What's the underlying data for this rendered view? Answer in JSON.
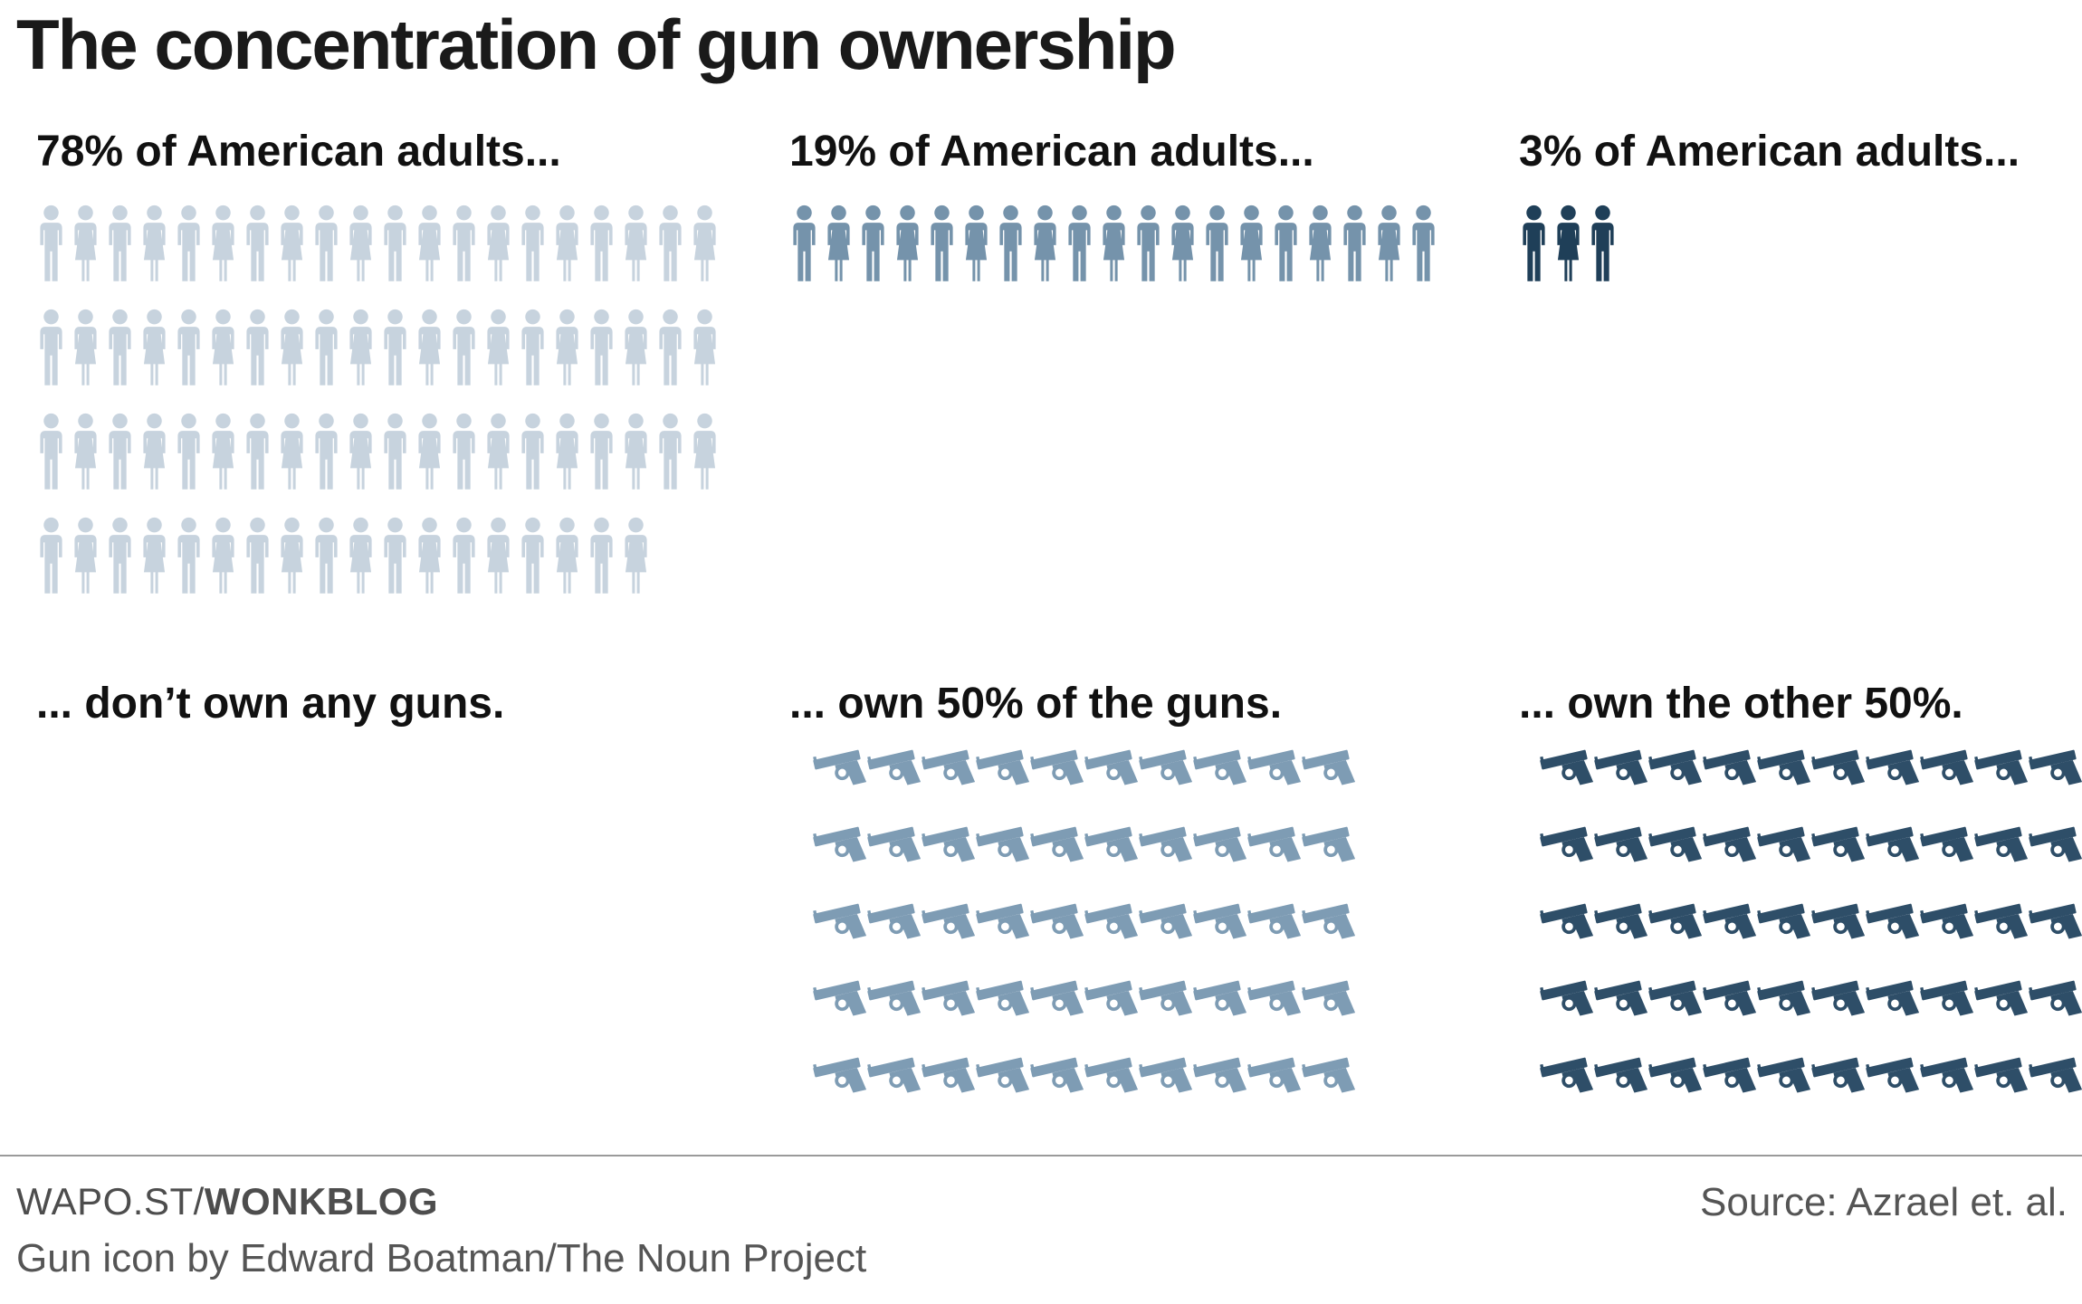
{
  "title": "The concentration of gun ownership",
  "columns": [
    {
      "header": "78% of American adults...",
      "caption": "... don’t own any guns.",
      "people": {
        "icon": "person-icon",
        "count": 78,
        "color": "#c7d3de"
      },
      "guns": {
        "icon": "gun-icon",
        "count": 0,
        "color": ""
      }
    },
    {
      "header": "19% of American adults...",
      "caption": "... own 50% of the guns.",
      "people": {
        "icon": "person-icon",
        "count": 19,
        "color": "#7593ab"
      },
      "guns": {
        "icon": "gun-icon",
        "count": 50,
        "color": "#7e9cb4"
      }
    },
    {
      "header": "3% of American adults...",
      "caption": "... own the other 50%.",
      "people": {
        "icon": "person-icon",
        "count": 3,
        "color": "#1f3f58"
      },
      "guns": {
        "icon": "gun-icon",
        "count": 50,
        "color": "#2e4e68"
      }
    }
  ],
  "footer": {
    "brand_prefix": "WAPO.ST/",
    "brand_bold": "WONKBLOG",
    "source": "Source: Azrael et. al.",
    "credit": "Gun icon by Edward Boatman/The Noun Project"
  },
  "chart_data": {
    "type": "pictogram",
    "title": "The concentration of gun ownership",
    "groups": [
      {
        "adults_label": "78% of American adults...",
        "ownership_label": "... don’t own any guns.",
        "adults_pct": 78,
        "guns_pct": 0,
        "people_icons_shown": 78,
        "gun_icons_shown": 0,
        "color": "#c7d3de"
      },
      {
        "adults_label": "19% of American adults...",
        "ownership_label": "... own 50% of the guns.",
        "adults_pct": 19,
        "guns_pct": 50,
        "people_icons_shown": 19,
        "gun_icons_shown": 50,
        "color": "#7593ab"
      },
      {
        "adults_label": "3% of American adults...",
        "ownership_label": "... own the other 50%.",
        "adults_pct": 3,
        "guns_pct": 50,
        "people_icons_shown": 3,
        "gun_icons_shown": 50,
        "color": "#1f3f58"
      }
    ],
    "layout": "three columns; people icon rows on top, caption mid, gun icon grids (10 per row, 5 rows) below",
    "source": "Source: Azrael et. al.",
    "credit": "Gun icon by Edward Boatman/The Noun Project"
  }
}
